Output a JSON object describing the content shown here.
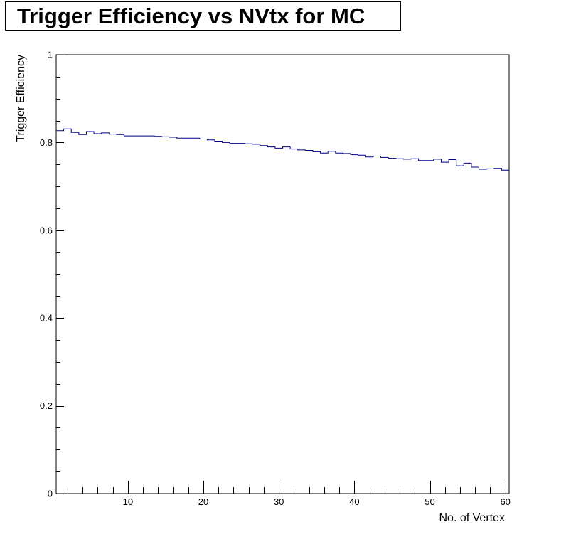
{
  "chart_data": {
    "type": "line",
    "title": "Trigger Efficiency vs NVtx for MC",
    "xlabel": "No. of Vertex",
    "ylabel": "Trigger Efficiency",
    "xlim": [
      0.5,
      60.5
    ],
    "ylim": [
      0,
      1
    ],
    "x_ticks": [
      10,
      20,
      30,
      40,
      50,
      60
    ],
    "y_ticks": [
      0,
      0.2,
      0.4,
      0.6,
      0.8,
      1
    ],
    "y_tick_labels": [
      "0",
      "0.2",
      "0.4",
      "0.6",
      "0.8",
      "1"
    ],
    "grid": false,
    "legend": "none",
    "line_color": "#000080",
    "histogram_step": true,
    "x": [
      1,
      2,
      3,
      4,
      5,
      6,
      7,
      8,
      9,
      10,
      11,
      12,
      13,
      14,
      15,
      16,
      17,
      18,
      19,
      20,
      21,
      22,
      23,
      24,
      25,
      26,
      27,
      28,
      29,
      30,
      31,
      32,
      33,
      34,
      35,
      36,
      37,
      38,
      39,
      40,
      41,
      42,
      43,
      44,
      45,
      46,
      47,
      48,
      49,
      50,
      51,
      52,
      53,
      54,
      55,
      56,
      57,
      58,
      59,
      60
    ],
    "series": [
      {
        "values": [
          0.827,
          0.831,
          0.823,
          0.818,
          0.825,
          0.82,
          0.822,
          0.819,
          0.818,
          0.815,
          0.815,
          0.815,
          0.815,
          0.814,
          0.813,
          0.812,
          0.81,
          0.81,
          0.81,
          0.808,
          0.806,
          0.803,
          0.8,
          0.798,
          0.798,
          0.797,
          0.796,
          0.793,
          0.79,
          0.787,
          0.79,
          0.785,
          0.783,
          0.782,
          0.779,
          0.776,
          0.78,
          0.776,
          0.775,
          0.772,
          0.771,
          0.767,
          0.769,
          0.766,
          0.764,
          0.763,
          0.762,
          0.763,
          0.759,
          0.759,
          0.762,
          0.755,
          0.761,
          0.747,
          0.753,
          0.744,
          0.739,
          0.74,
          0.741,
          0.737
        ]
      }
    ]
  }
}
